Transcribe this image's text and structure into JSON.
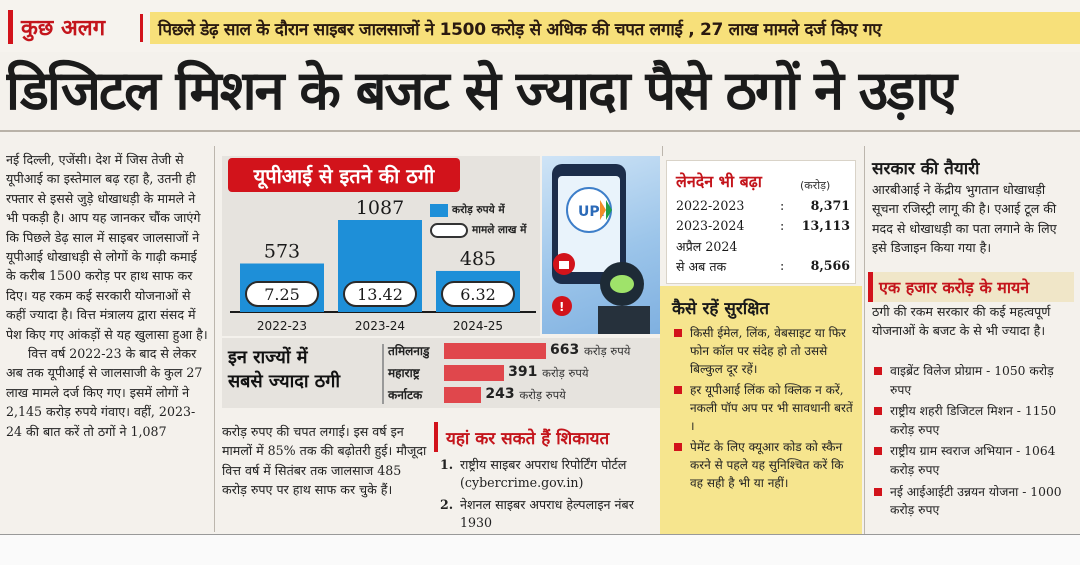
{
  "top": {
    "section_tag": "कुछ अलग",
    "strapline": "पिछले डेढ़ साल के दौरान साइबर जालसाजों ने 1500 करोड़ से अधिक की चपत लगाई , 27 लाख मामले दर्ज किए गए"
  },
  "headline": "डिजिटल मिशन के बजट से ज्यादा पैसे ठगों ने उड़ाए",
  "left_column": {
    "para1": "नई दिल्ली, एजेंसी। देश में जिस तेजी से यूपीआई का इस्तेमाल बढ़ रहा है, उतनी ही रफ्तार से इससे जुड़े धोखाधड़ी के मामले ने भी पकड़ी है। आप यह जानकर चौंक जाएंगे कि पिछले डेढ़ साल में साइबर जालसाजों ने यूपीआई धोखाधड़ी से लोगों के गाढ़ी कमाई के करीब 1500 करोड़ पर हाथ साफ कर दिए। यह रकम कई सरकारी योजनाओं से कहीं ज्यादा है। वित्त मंत्रालय द्वारा संसद में पेश किए गए आंकड़ों से यह खुलासा हुआ है।",
    "para2": "वित्त वर्ष 2022-23 के बाद से लेकर अब तक यूपीआई से जालसाजी के कुल 27 लाख मामले दर्ज किए गए। इसमें लोगों ने 2,145 करोड़ रुपये गंवाए। वहीं, 2023-24 की बात करें तो ठगों ने 1,087"
  },
  "middle_text": "करोड़ रुपए की चपत लगाई। इस वर्ष इन मामलों में 85% तक की बढ़ोतरी हुई। मौजूदा वित्त वर्ष में सितंबर तक जालसाज 485 करोड़ रुपए पर हाथ साफ कर चुके हैं।",
  "chart_title": "यूपीआई से इतने की ठगी",
  "chart_data": {
    "type": "bar",
    "categories": [
      "2022-23",
      "2023-24",
      "2024-25"
    ],
    "series": [
      {
        "name": "करोड़ रुपये में",
        "values": [
          573,
          1087,
          485
        ]
      },
      {
        "name": "मामले लाख में",
        "values": [
          7.25,
          13.42,
          6.32
        ]
      }
    ],
    "legend": "top-right",
    "bar_color": "#1e8fd8"
  },
  "states": {
    "title_line1": "इन राज्यों में",
    "title_line2": "सबसे ज्यादा ठगी",
    "unit": "करोड़ रुपये",
    "bar_color": "#e0474c",
    "items": [
      {
        "name": "तमिलनाडु",
        "value": 663
      },
      {
        "name": "महाराष्ट्र",
        "value": 391
      },
      {
        "name": "कर्नाटक",
        "value": 243
      }
    ]
  },
  "complaints": {
    "title": "यहां कर सकते हैं शिकायत",
    "items": [
      {
        "num": "1.",
        "text": "राष्ट्रीय साइबर अपराध रिपोर्टिंग पोर्टल (cybercrime.gov.in)"
      },
      {
        "num": "2.",
        "text": "नेशनल साइबर अपराध हेल्पलाइन नंबर 1930"
      }
    ]
  },
  "transactions": {
    "title": "लेनदेन भी बढ़ा",
    "unit": "(करोड़)",
    "rows": [
      {
        "year": "2022-2023",
        "value": "8,371"
      },
      {
        "year": "2023-2024",
        "value": "13,113"
      },
      {
        "year": "अप्रैल 2024",
        "value": ""
      },
      {
        "year": "से अब तक",
        "value": "8,566"
      }
    ]
  },
  "safety": {
    "title": "कैसे रहें सुरक्षित",
    "items": [
      "किसी ईमेल, लिंक, वेबसाइट या फिर फोन कॉल पर संदेह हो तो उससे बिल्कुल दूर रहें।",
      "हर यूपीआई लिंक को क्लिक न करें, नकली पॉप अप पर भी सावधानी बरतें ।",
      "पेमेंट के लिए क्यूआर कोड को स्कैन करने से पहले यह सुनिश्चित करें कि वह सही है भी या नहीं।"
    ]
  },
  "government": {
    "title": "सरकार की तैयारी",
    "text": "आरबीआई ने केंद्रीय भुगतान धोखाधड़ी सूचना रजिस्ट्री लागू की है। एआई टूल की मदद से धोखाधड़ी का पता लगाने के लिए इसे डिजाइन किया गया है।"
  },
  "thousand_crore": {
    "title": "एक हजार करोड़ के मायने",
    "intro": "ठगी की रकम सरकार की कई महत्वपूर्ण योजनाओं के बजट के से भी ज्यादा है।",
    "items": [
      "वाइब्रेंट विलेज प्रोग्राम - 1050 करोड़ रुपए",
      "राष्ट्रीय शहरी डिजिटल मिशन - 1150 करोड़ रुपए",
      "राष्ट्रीय ग्राम स्वराज अभियान - 1064 करोड़ रुपए",
      "नई आईआईटी उन्नयन योजना - 1000 करोड़ रुपए"
    ]
  },
  "photo": {
    "logo_text": "UPI"
  }
}
